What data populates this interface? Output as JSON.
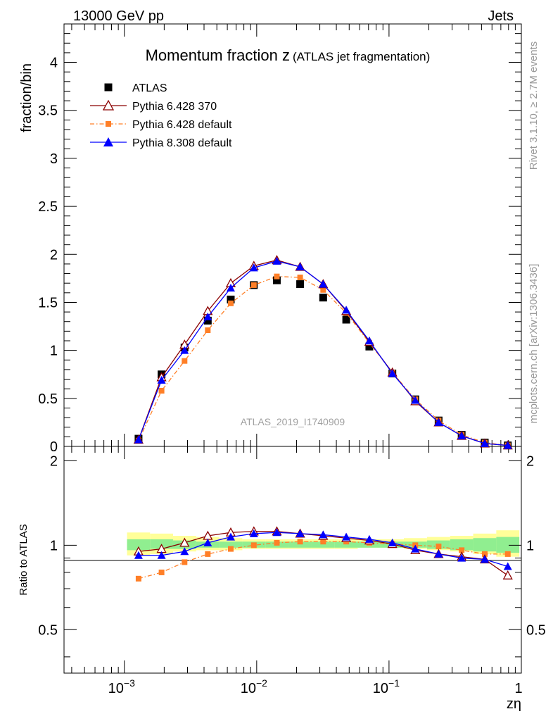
{
  "header": {
    "left": "13000 GeV pp",
    "right": "Jets"
  },
  "side": {
    "rivet": "Rivet 3.1.10, ≥ 2.7M events",
    "mcplots": "mcplots.cern.ch [arXiv:1306.3436]"
  },
  "chart_data": {
    "type": "scatter",
    "title": "Momentum fraction z",
    "subtitle": "(ATLAS jet fragmentation)",
    "watermark": "ATLAS_2019_I1740909",
    "xlabel": "zη",
    "ylabel": "fraction/bin",
    "ratio_ylabel": "Ratio to ATLAS",
    "xscale": "log",
    "xlim": [
      0.00035,
      1.0
    ],
    "ylim": [
      0,
      4.4
    ],
    "ratio_ylim": [
      0.35,
      2.25
    ],
    "x_ticks": [
      {
        "v": 0.001,
        "base": "10",
        "exp": "−3"
      },
      {
        "v": 0.01,
        "base": "10",
        "exp": "−2"
      },
      {
        "v": 0.1,
        "base": "10",
        "exp": "−1"
      },
      {
        "v": 1,
        "base": "1",
        "exp": ""
      }
    ],
    "y_ticks": [
      {
        "v": 0,
        "label": "0"
      },
      {
        "v": 0.5,
        "label": "0.5"
      },
      {
        "v": 1,
        "label": "1"
      },
      {
        "v": 1.5,
        "label": "1.5"
      },
      {
        "v": 2,
        "label": "2"
      },
      {
        "v": 2.5,
        "label": "2.5"
      },
      {
        "v": 3,
        "label": "3"
      },
      {
        "v": 3.5,
        "label": "3.5"
      },
      {
        "v": 4,
        "label": "4"
      }
    ],
    "ratio_ticks": [
      {
        "v": 0.5,
        "label": "0.5"
      },
      {
        "v": 1,
        "label": "1"
      },
      {
        "v": 2,
        "label": "2"
      }
    ],
    "legend_position": "top-left",
    "x": [
      0.00128,
      0.00191,
      0.00285,
      0.00427,
      0.00637,
      0.00952,
      0.0142,
      0.0213,
      0.0318,
      0.0475,
      0.071,
      0.106,
      0.158,
      0.237,
      0.354,
      0.529,
      0.79
    ],
    "ratio_band_outer": [
      [
        0.92,
        1.11
      ],
      [
        0.93,
        1.1
      ],
      [
        0.95,
        1.08
      ],
      [
        0.96,
        1.07
      ],
      [
        0.96,
        1.06
      ],
      [
        0.97,
        1.05
      ],
      [
        0.97,
        1.05
      ],
      [
        0.97,
        1.05
      ],
      [
        0.97,
        1.05
      ],
      [
        0.97,
        1.05
      ],
      [
        0.98,
        1.05
      ],
      [
        0.98,
        1.05
      ],
      [
        0.97,
        1.06
      ],
      [
        0.96,
        1.07
      ],
      [
        0.95,
        1.08
      ],
      [
        0.93,
        1.1
      ],
      [
        0.91,
        1.13
      ]
    ],
    "ratio_band_inner": [
      [
        0.96,
        1.05
      ],
      [
        0.97,
        1.05
      ],
      [
        0.97,
        1.04
      ],
      [
        0.98,
        1.03
      ],
      [
        0.98,
        1.03
      ],
      [
        0.98,
        1.03
      ],
      [
        0.98,
        1.03
      ],
      [
        0.98,
        1.03
      ],
      [
        0.98,
        1.03
      ],
      [
        0.98,
        1.03
      ],
      [
        0.98,
        1.03
      ],
      [
        0.98,
        1.03
      ],
      [
        0.98,
        1.03
      ],
      [
        0.97,
        1.04
      ],
      [
        0.96,
        1.05
      ],
      [
        0.95,
        1.06
      ],
      [
        0.94,
        1.07
      ]
    ],
    "series": [
      {
        "name": "ATLAS",
        "color": "#000000",
        "marker": "square",
        "line": "none",
        "values": [
          0.08,
          0.75,
          1.03,
          1.31,
          1.53,
          1.68,
          1.73,
          1.69,
          1.55,
          1.32,
          1.04,
          0.76,
          0.49,
          0.27,
          0.12,
          0.04,
          0.01
        ],
        "ratio": null
      },
      {
        "name": "Pythia 6.428 370",
        "color": "#8b0000",
        "marker": "open-triangle",
        "line": "solid",
        "values": [
          0.07,
          0.72,
          1.06,
          1.41,
          1.7,
          1.88,
          1.94,
          1.87,
          1.69,
          1.41,
          1.09,
          0.77,
          0.47,
          0.25,
          0.11,
          0.03,
          0.01
        ],
        "ratio": [
          0.95,
          0.97,
          1.02,
          1.08,
          1.11,
          1.12,
          1.12,
          1.1,
          1.08,
          1.06,
          1.04,
          1.01,
          0.96,
          0.93,
          0.91,
          0.89,
          0.78
        ]
      },
      {
        "name": "Pythia 6.428 default",
        "color": "#ff7f27",
        "marker": "square",
        "line": "dashdot",
        "values": [
          0.06,
          0.58,
          0.89,
          1.21,
          1.49,
          1.68,
          1.77,
          1.76,
          1.63,
          1.39,
          1.08,
          0.77,
          0.49,
          0.27,
          0.12,
          0.04,
          0.01
        ],
        "ratio": [
          0.76,
          0.8,
          0.87,
          0.93,
          0.97,
          1.0,
          1.02,
          1.03,
          1.03,
          1.03,
          1.02,
          1.01,
          1.0,
          0.99,
          0.96,
          0.93,
          0.93
        ]
      },
      {
        "name": "Pythia 8.308 default",
        "color": "#0000ff",
        "marker": "triangle",
        "line": "solid",
        "values": [
          0.07,
          0.69,
          1.0,
          1.35,
          1.65,
          1.86,
          1.93,
          1.87,
          1.69,
          1.42,
          1.1,
          0.76,
          0.48,
          0.25,
          0.11,
          0.03,
          0.01
        ],
        "ratio": [
          0.92,
          0.92,
          0.95,
          1.02,
          1.07,
          1.1,
          1.11,
          1.1,
          1.09,
          1.07,
          1.05,
          1.02,
          0.97,
          0.93,
          0.9,
          0.89,
          0.84
        ]
      }
    ]
  }
}
